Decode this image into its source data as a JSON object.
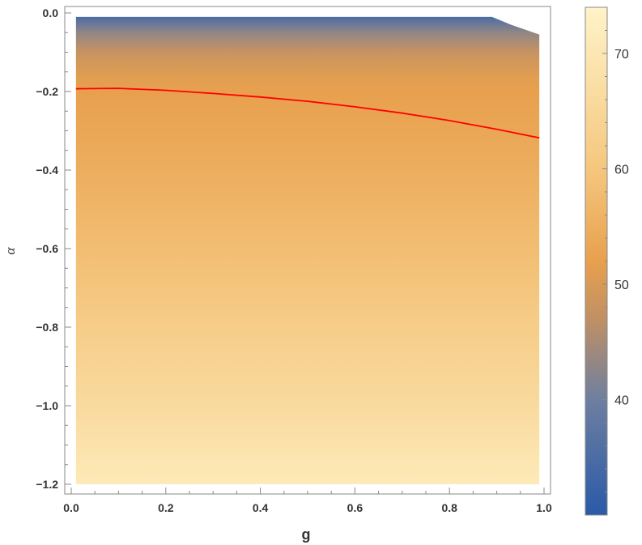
{
  "chart_data": {
    "type": "heatmap",
    "title": "",
    "xlabel": "g",
    "ylabel": "α",
    "xlim": [
      0.0,
      1.0
    ],
    "ylim": [
      -1.2,
      0.0
    ],
    "data_x_range": [
      0.01,
      0.99
    ],
    "data_y_range": [
      -1.2,
      -0.01
    ],
    "x_ticks": [
      {
        "value": 0.0,
        "label": "0.0"
      },
      {
        "value": 0.2,
        "label": "0.2"
      },
      {
        "value": 0.4,
        "label": "0.4"
      },
      {
        "value": 0.6,
        "label": "0.6"
      },
      {
        "value": 0.8,
        "label": "0.8"
      },
      {
        "value": 1.0,
        "label": "1.0"
      }
    ],
    "y_ticks": [
      {
        "value": 0.0,
        "label": "0.0"
      },
      {
        "value": -0.2,
        "label": "−0.2"
      },
      {
        "value": -0.4,
        "label": "−0.4"
      },
      {
        "value": -0.6,
        "label": "−0.6"
      },
      {
        "value": -0.8,
        "label": "−0.8"
      },
      {
        "value": -1.0,
        "label": "−1.0"
      },
      {
        "value": -1.2,
        "label": "−1.2"
      }
    ],
    "colorbar": {
      "range": [
        30,
        74
      ],
      "ticks": [
        {
          "value": 40,
          "label": "40"
        },
        {
          "value": 50,
          "label": "50"
        },
        {
          "value": 60,
          "label": "60"
        },
        {
          "value": 70,
          "label": "70"
        }
      ],
      "colors": [
        {
          "value": 30,
          "color": "#2a5aa8"
        },
        {
          "value": 40,
          "color": "#6e7fa0"
        },
        {
          "value": 47,
          "color": "#c09064"
        },
        {
          "value": 52,
          "color": "#e8a04e"
        },
        {
          "value": 60,
          "color": "#f5c77e"
        },
        {
          "value": 74,
          "color": "#fff3c8"
        }
      ]
    },
    "field_profile_alpha": [
      {
        "alpha": -0.01,
        "value": 35
      },
      {
        "alpha": -0.05,
        "value": 43
      },
      {
        "alpha": -0.1,
        "value": 48
      },
      {
        "alpha": -0.16,
        "value": 51
      },
      {
        "alpha": -0.2,
        "value": 52
      },
      {
        "alpha": -0.35,
        "value": 54
      },
      {
        "alpha": -0.6,
        "value": 58
      },
      {
        "alpha": -0.8,
        "value": 62
      },
      {
        "alpha": -1.0,
        "value": 66
      },
      {
        "alpha": -1.2,
        "value": 71
      }
    ],
    "blank_region": [
      {
        "g": 0.89,
        "alpha": -0.01
      },
      {
        "g": 0.93,
        "alpha": -0.03
      },
      {
        "g": 0.99,
        "alpha": -0.055
      }
    ],
    "series": [
      {
        "type": "line",
        "color": "#ff0000",
        "points": [
          {
            "g": 0.01,
            "alpha": -0.193
          },
          {
            "g": 0.1,
            "alpha": -0.192
          },
          {
            "g": 0.2,
            "alpha": -0.197
          },
          {
            "g": 0.3,
            "alpha": -0.205
          },
          {
            "g": 0.4,
            "alpha": -0.214
          },
          {
            "g": 0.5,
            "alpha": -0.225
          },
          {
            "g": 0.6,
            "alpha": -0.239
          },
          {
            "g": 0.7,
            "alpha": -0.255
          },
          {
            "g": 0.8,
            "alpha": -0.274
          },
          {
            "g": 0.9,
            "alpha": -0.296
          },
          {
            "g": 0.99,
            "alpha": -0.318
          }
        ]
      }
    ]
  }
}
